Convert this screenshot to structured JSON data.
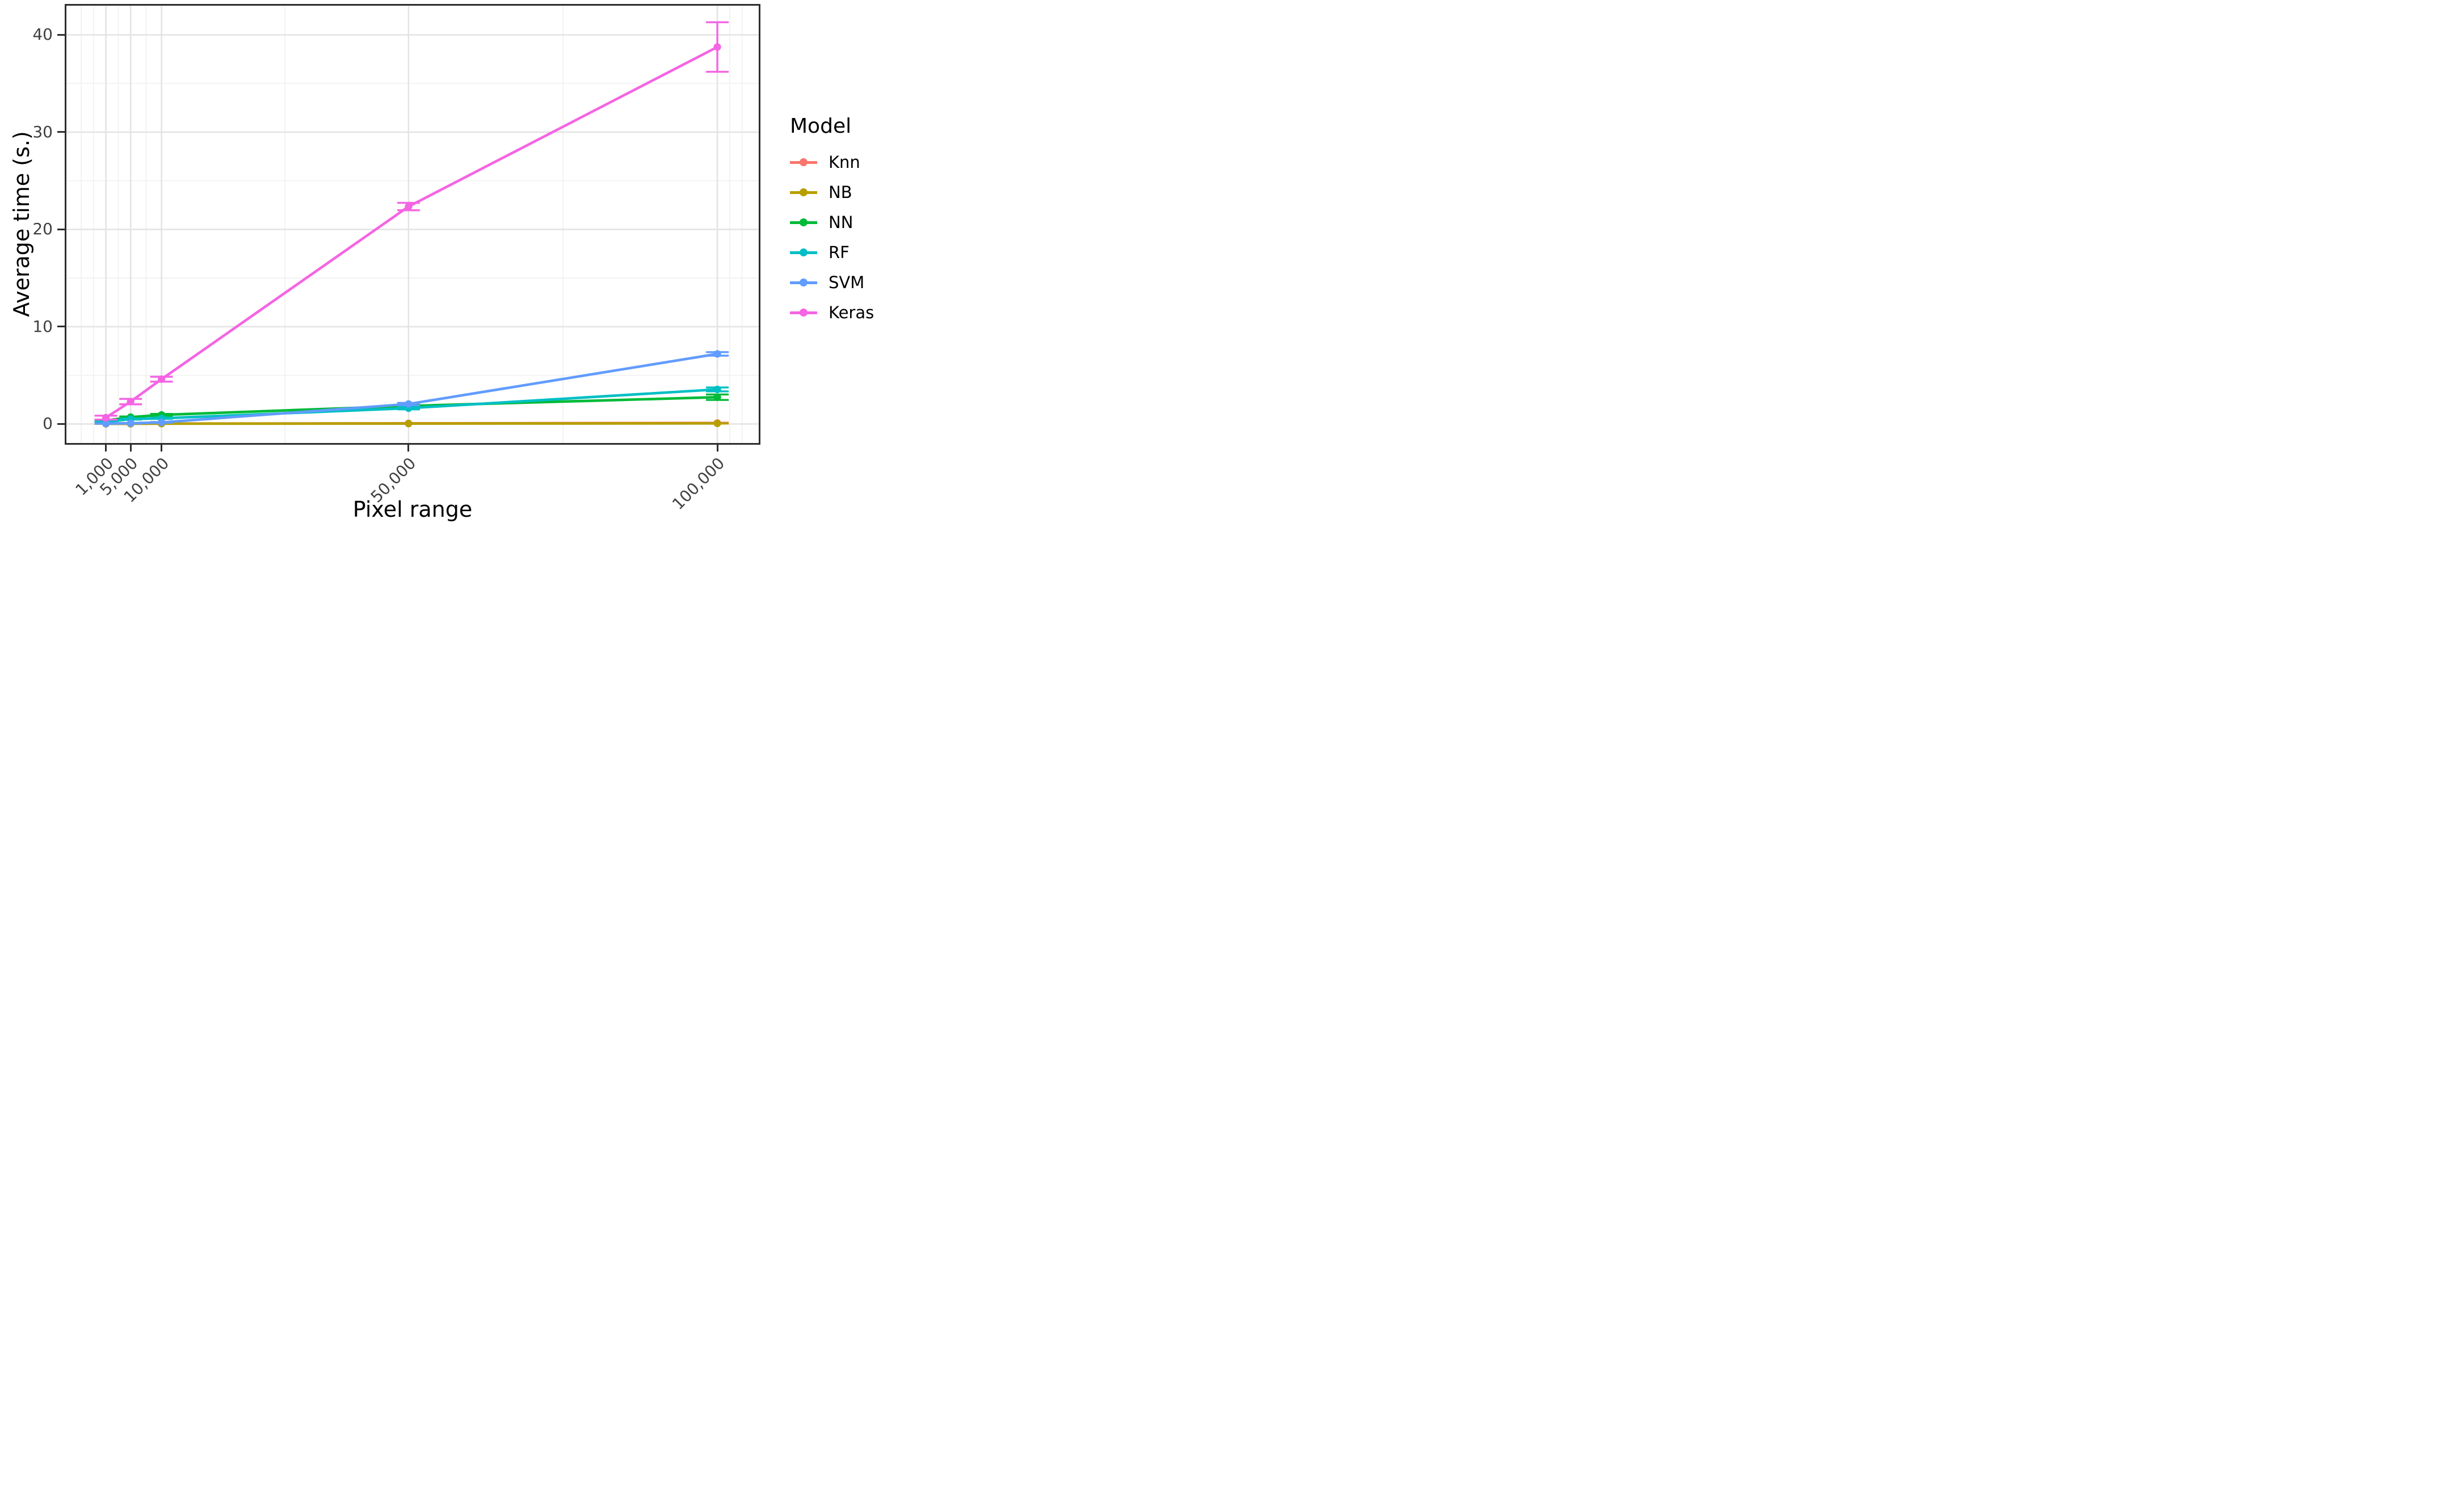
{
  "chart_data": {
    "type": "line",
    "title": "",
    "xlabel": "Pixel range",
    "ylabel": "Average time (s.)",
    "legend_title": "Model",
    "legend_position": "right",
    "grid": "major+minor",
    "x": [
      1000,
      5000,
      10000,
      50000,
      100000
    ],
    "x_tick_labels": [
      "1,000",
      "5,000",
      "10,000",
      "50,000",
      "100,000"
    ],
    "y_ticks": [
      0,
      10,
      20,
      30,
      40
    ],
    "xlim": [
      -5400,
      106700
    ],
    "ylim": [
      -1.96,
      43.0
    ],
    "x_minor_gridlines": [
      -3000,
      -1000,
      3000,
      7500,
      30000,
      75000,
      102000,
      104000
    ],
    "y_minor_gridlines": [
      5,
      15,
      25,
      35
    ],
    "series": [
      {
        "name": "Knn",
        "color": "#F8766D",
        "values": [
          0.02,
          0.03,
          0.04,
          0.06,
          0.1
        ],
        "errors": [
          0.01,
          0.01,
          0.01,
          0.02,
          0.03
        ]
      },
      {
        "name": "NB",
        "color": "#B79F00",
        "values": [
          0.02,
          0.02,
          0.03,
          0.04,
          0.06
        ],
        "errors": [
          0.01,
          0.01,
          0.01,
          0.01,
          0.02
        ]
      },
      {
        "name": "NN",
        "color": "#00BA38",
        "values": [
          0.35,
          0.7,
          0.93,
          1.85,
          2.75
        ],
        "errors": [
          0.05,
          0.07,
          0.1,
          0.12,
          0.28
        ]
      },
      {
        "name": "RF",
        "color": "#00BFC4",
        "values": [
          0.2,
          0.5,
          0.58,
          1.62,
          3.55
        ],
        "errors": [
          0.04,
          0.05,
          0.06,
          0.12,
          0.2
        ]
      },
      {
        "name": "SVM",
        "color": "#619CFF",
        "values": [
          0.04,
          0.07,
          0.16,
          2.05,
          7.2
        ],
        "errors": [
          0.02,
          0.03,
          0.04,
          0.12,
          0.18
        ]
      },
      {
        "name": "Keras",
        "color": "#F564E3",
        "values": [
          0.65,
          2.3,
          4.6,
          22.35,
          38.75
        ],
        "errors": [
          0.2,
          0.28,
          0.25,
          0.38,
          2.55
        ]
      }
    ]
  }
}
